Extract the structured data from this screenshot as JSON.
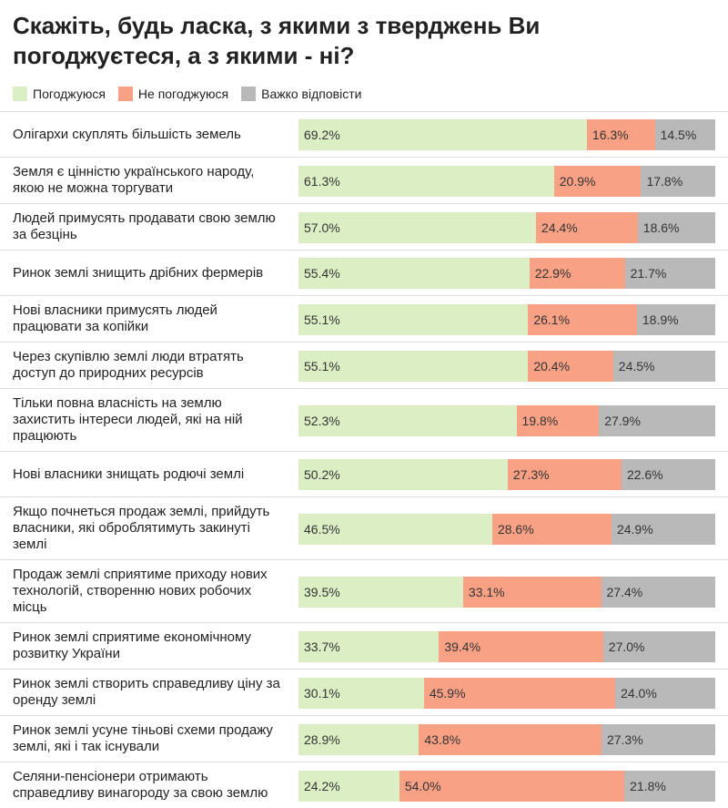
{
  "chart_data": {
    "type": "stacked-bar-horizontal",
    "title": "Скажіть, будь ласка, з якими з тверджень Ви погоджуєтеся, а з якими - ні?",
    "categories": [
      "Олігархи скуплять більшість земель",
      "Земля є цінністю українського народу, якою не можна торгувати",
      "Людей примусять продавати свою землю за безцінь",
      "Ринок землі знищить дрібних фермерів",
      "Нові власники примусять людей працювати за копійки",
      "Через скупівлю землі люди втратять доступ до природних ресурсів",
      "Тільки повна власність на землю захистить інтереси людей, які на ній працюють",
      "Нові власники знищать родючі землі",
      "Якщо почнеться продаж землі, прийдуть власники, які оброблятимуть закинуті землі",
      "Продаж землі сприятиме приходу нових технологій, створенню нових робочих місць",
      "Ринок землі сприятиме економічному розвитку України",
      "Ринок землі створить справедливу ціну за оренду землі",
      "Ринок землі усуне тіньові схеми продажу землі, які і так існували",
      "Селяни-пенсіонери отримають справедливу винагороду за свою землю"
    ],
    "series": [
      {
        "name": "Погоджуюся",
        "color": "#dcefc4",
        "values": [
          69.2,
          61.3,
          57.0,
          55.4,
          55.1,
          55.1,
          52.3,
          50.2,
          46.5,
          39.5,
          33.7,
          30.1,
          28.9,
          24.2
        ],
        "value_labels": [
          "69.2%",
          "61.3%",
          "57.0%",
          "55.4%",
          "55.1%",
          "55.1%",
          "52.3%",
          "50.2%",
          "46.5%",
          "39.5%",
          "33.7%",
          "30.1%",
          "28.9%",
          "24.2%"
        ]
      },
      {
        "name": "Не погоджуюся",
        "color": "#f9a185",
        "values": [
          16.3,
          20.9,
          24.4,
          22.9,
          26.1,
          20.4,
          19.8,
          27.3,
          28.6,
          33.1,
          39.4,
          45.9,
          43.8,
          54.0
        ],
        "value_labels": [
          "16.3%",
          "20.9%",
          "24.4%",
          "22.9%",
          "26.1%",
          "20.4%",
          "19.8%",
          "27.3%",
          "28.6%",
          "33.1%",
          "39.4%",
          "45.9%",
          "43.8%",
          "54.0%"
        ]
      },
      {
        "name": "Важко відповісти",
        "color": "#b9b9b9",
        "values": [
          14.5,
          17.8,
          18.6,
          21.7,
          18.9,
          24.5,
          27.9,
          22.6,
          24.9,
          27.4,
          27.0,
          24.0,
          27.3,
          21.8
        ],
        "value_labels": [
          "14.5%",
          "17.8%",
          "18.6%",
          "21.7%",
          "18.9%",
          "24.5%",
          "27.9%",
          "22.6%",
          "24.9%",
          "27.4%",
          "27.0%",
          "24.0%",
          "27.3%",
          "21.8%"
        ]
      }
    ]
  }
}
